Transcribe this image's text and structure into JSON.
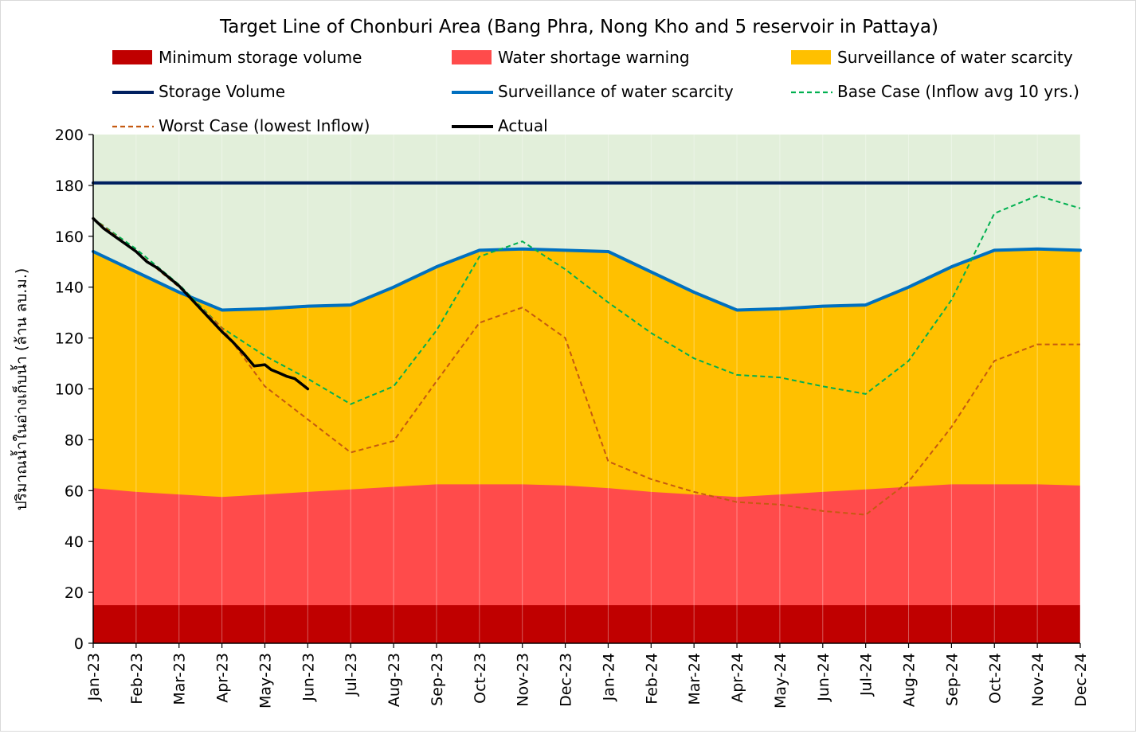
{
  "chart_data": {
    "type": "area",
    "title": "Target Line of Chonburi Area (Bang Phra, Nong Kho and 5 reservoir in Pattaya)",
    "xlabel": "",
    "ylabel": "ปริมาณน้ำในอ่างเก็บน้ำ (ล้าน ลบ.ม.)",
    "ylim": [
      0,
      200
    ],
    "yticks": [
      0,
      20,
      40,
      60,
      80,
      100,
      120,
      140,
      160,
      180,
      200
    ],
    "grid": false,
    "legend_position": "top",
    "categories": [
      "Jan-23",
      "Feb-23",
      "Mar-23",
      "Apr-23",
      "May-23",
      "Jun-23",
      "Jul-23",
      "Aug-23",
      "Sep-23",
      "Oct-23",
      "Nov-23",
      "Dec-23",
      "Jan-24",
      "Feb-24",
      "Mar-24",
      "Apr-24",
      "May-24",
      "Jun-24",
      "Jul-24",
      "Aug-24",
      "Sep-24",
      "Oct-24",
      "Nov-24",
      "Dec-24"
    ],
    "background_fill": {
      "value": 200,
      "color": "#e2efda"
    },
    "series": [
      {
        "name": "Surveillance of water scarcity",
        "kind": "area",
        "color": "#ffc000",
        "values": [
          154,
          146,
          138,
          131,
          131.5,
          132.5,
          133,
          140,
          148,
          154.5,
          155,
          154.5,
          154,
          146,
          138,
          131,
          131.5,
          132.5,
          133,
          140,
          148,
          154.5,
          155,
          154.5
        ]
      },
      {
        "name": "Water shortage warning",
        "kind": "area",
        "color": "#ff4b4b",
        "values": [
          61,
          59.5,
          58.5,
          57.5,
          58.5,
          59.5,
          60.5,
          61.5,
          62.5,
          62.5,
          62.5,
          62,
          61,
          59.5,
          58.5,
          57.5,
          58.5,
          59.5,
          60.5,
          61.5,
          62.5,
          62.5,
          62.5,
          62
        ]
      },
      {
        "name": "Minimum storage volume",
        "kind": "area",
        "color": "#c00000",
        "values": [
          15,
          15,
          15,
          15,
          15,
          15,
          15,
          15,
          15,
          15,
          15,
          15,
          15,
          15,
          15,
          15,
          15,
          15,
          15,
          15,
          15,
          15,
          15,
          15
        ]
      },
      {
        "name": "Storage Volume",
        "kind": "line",
        "color": "#002060",
        "width": 4,
        "values": [
          181,
          181,
          181,
          181,
          181,
          181,
          181,
          181,
          181,
          181,
          181,
          181,
          181,
          181,
          181,
          181,
          181,
          181,
          181,
          181,
          181,
          181,
          181,
          181
        ]
      },
      {
        "name": "Surveillance of water scarcity",
        "kind": "line",
        "color": "#0070c0",
        "width": 4,
        "values": [
          154,
          146,
          138,
          131,
          131.5,
          132.5,
          133,
          140,
          148,
          154.5,
          155,
          154.5,
          154,
          146,
          138,
          131,
          131.5,
          132.5,
          133,
          140,
          148,
          154.5,
          155,
          154.5
        ]
      },
      {
        "name": "Base Case (Inflow avg 10 yrs.)",
        "kind": "dashed",
        "color": "#00b050",
        "width": 2,
        "values": [
          167,
          155,
          141,
          124,
          113,
          104,
          94,
          101,
          123,
          152,
          158,
          147,
          134,
          122,
          112,
          105.5,
          104.5,
          101,
          98,
          111,
          135,
          169,
          176,
          171
        ]
      },
      {
        "name": "Worst Case (lowest Inflow)",
        "kind": "dashed",
        "color": "#c55a11",
        "width": 2,
        "values": [
          167,
          154,
          140,
          124,
          101,
          88,
          75,
          79.5,
          103,
          126,
          132,
          120,
          71.5,
          64.5,
          59.5,
          55.5,
          54.5,
          52,
          50.5,
          63.5,
          85,
          111,
          117.5,
          117.5
        ]
      },
      {
        "name": "Actual",
        "kind": "line",
        "color": "#000000",
        "width": 3.5,
        "x": [
          0,
          0.25,
          0.5,
          0.75,
          1,
          1.25,
          1.5,
          1.75,
          2,
          2.25,
          2.5,
          2.75,
          3,
          3.25,
          3.5,
          3.75,
          4,
          4.15,
          4.3,
          4.5,
          4.7,
          4.85,
          5
        ],
        "values": [
          167,
          163,
          160,
          157,
          154,
          150,
          147.5,
          144,
          140.5,
          136,
          131.5,
          127,
          122.5,
          118.5,
          114,
          109,
          109.5,
          107.5,
          106.5,
          105,
          104,
          102,
          100
        ]
      }
    ],
    "legend": [
      {
        "label": "Minimum storage volume",
        "symbol": "box",
        "color": "#c00000"
      },
      {
        "label": "Water shortage warning",
        "symbol": "box",
        "color": "#ff4b4b"
      },
      {
        "label": "Surveillance of water scarcity",
        "symbol": "box",
        "color": "#ffc000"
      },
      {
        "label": "Storage Volume",
        "symbol": "line",
        "color": "#002060"
      },
      {
        "label": "Surveillance of water scarcity",
        "symbol": "line",
        "color": "#0070c0"
      },
      {
        "label": "Base Case (Inflow avg 10 yrs.)",
        "symbol": "dashed",
        "color": "#00b050"
      },
      {
        "label": "Worst Case (lowest Inflow)",
        "symbol": "dashed",
        "color": "#c55a11"
      },
      {
        "label": "Actual",
        "symbol": "line",
        "color": "#000000"
      }
    ]
  }
}
